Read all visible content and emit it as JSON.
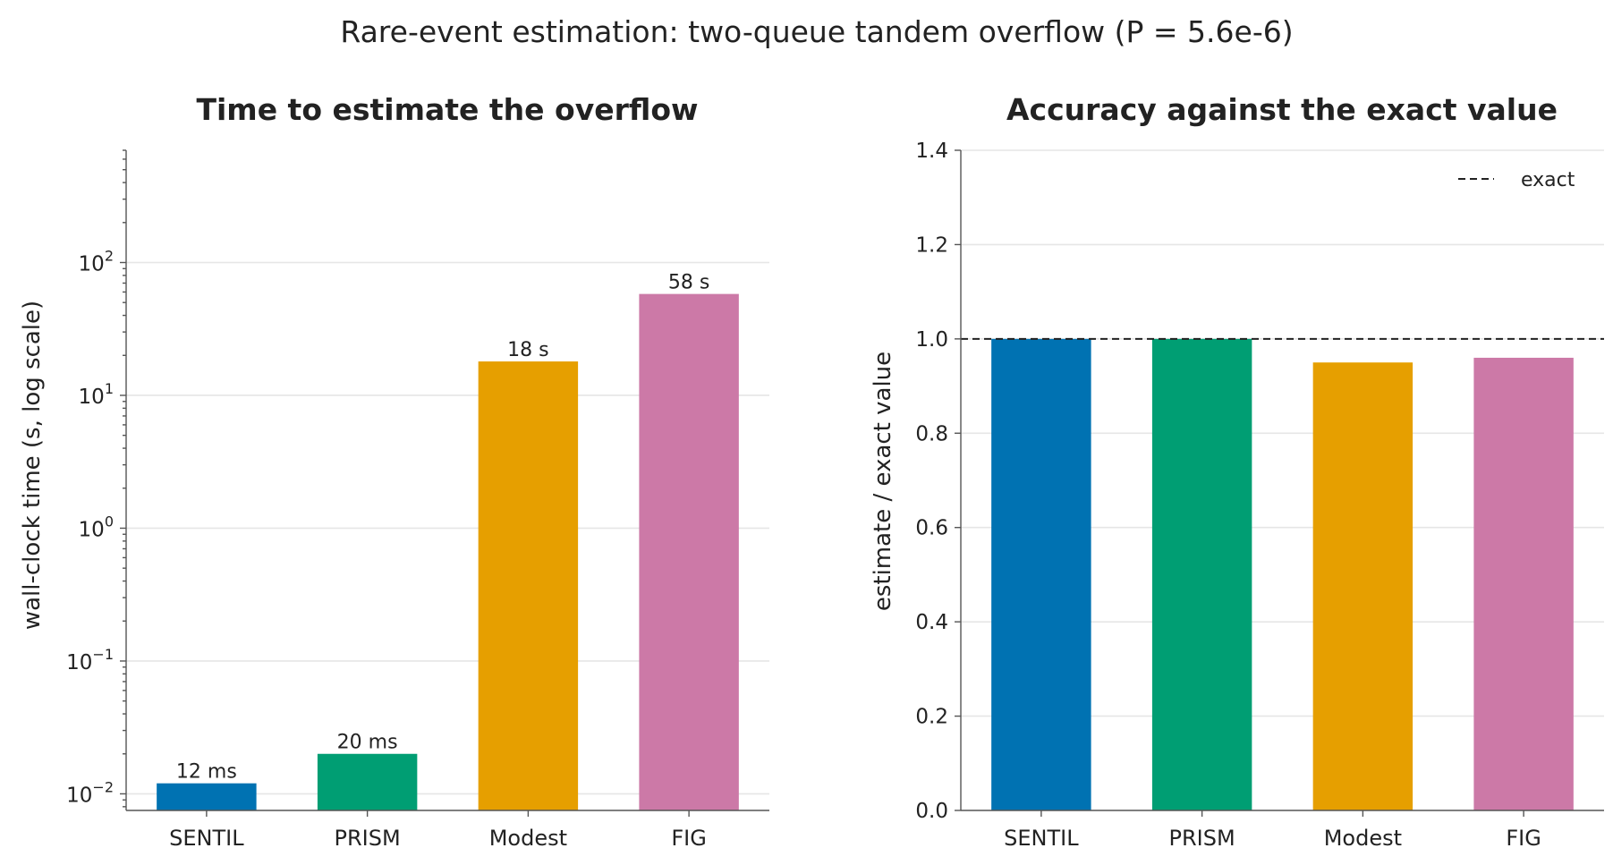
{
  "suptitle": "Rare-event estimation: two-queue tandem overflow (P = 5.6e-6)",
  "colors": {
    "SENTIL": "#0072b2",
    "PRISM": "#009e73",
    "Modest": "#e69f00",
    "FIG": "#cc79a7"
  },
  "chart_data": [
    {
      "type": "bar",
      "title": "Time to estimate the overflow",
      "ylabel": "wall-clock time (s, log scale)",
      "yscale": "log",
      "ylim": [
        0.0075,
        700
      ],
      "ytick_labels": [
        {
          "base": "10",
          "exp": "−2",
          "value": 0.01
        },
        {
          "base": "10",
          "exp": "−1",
          "value": 0.1
        },
        {
          "base": "10",
          "exp": "0",
          "value": 1
        },
        {
          "base": "10",
          "exp": "1",
          "value": 10
        },
        {
          "base": "10",
          "exp": "2",
          "value": 100
        }
      ],
      "categories": [
        "SENTIL",
        "PRISM",
        "Modest",
        "FIG"
      ],
      "values": [
        0.012,
        0.02,
        18,
        58
      ],
      "data_labels": [
        "12 ms",
        "20 ms",
        "18 s",
        "58 s"
      ],
      "grid": true
    },
    {
      "type": "bar",
      "title": "Accuracy against the exact value",
      "ylabel": "estimate / exact value",
      "yscale": "linear",
      "ylim": [
        0,
        1.4
      ],
      "ytick_labels": [
        "0.0",
        "0.2",
        "0.4",
        "0.6",
        "0.8",
        "1.0",
        "1.2",
        "1.4"
      ],
      "categories": [
        "SENTIL",
        "PRISM",
        "Modest",
        "FIG"
      ],
      "values": [
        1.0,
        1.0,
        0.95,
        0.96
      ],
      "reference_line": {
        "value": 1.0,
        "label": "exact",
        "style": "dashed"
      },
      "legend_placement": "top-right",
      "grid": true
    }
  ]
}
